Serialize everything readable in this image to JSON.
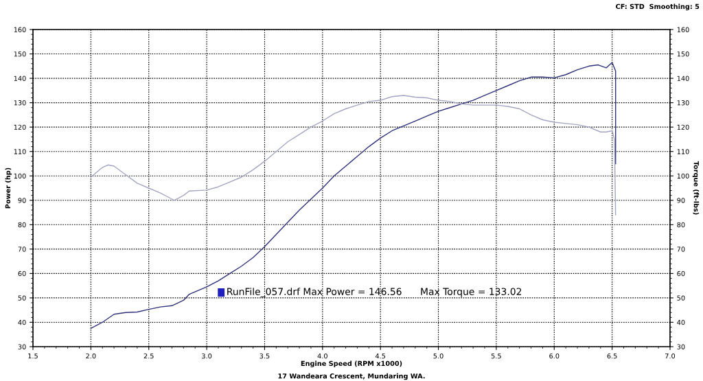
{
  "chart_data": {
    "type": "line",
    "subtitle": "CF: STD  Smoothing: 5",
    "xlabel": "Engine Speed (RPM x1000)",
    "ylabel": "Power (hp)",
    "y2label": "Torque (ft-lbs)",
    "annotations": [
      "RunFile_057.drf Max Power = 146.56      Max Torque = 133.02",
      "17 Wandeara Crescent, Mundaring WA."
    ],
    "xlim": [
      1.5,
      7.0
    ],
    "xticks": [
      {
        "value": 1.5,
        "label": "1.5"
      },
      {
        "value": 2,
        "label": "2.0"
      },
      {
        "value": 2.5,
        "label": "2.5"
      },
      {
        "value": 3,
        "label": "3.0"
      },
      {
        "value": 3.5,
        "label": "3.5"
      },
      {
        "value": 4,
        "label": "4.0"
      },
      {
        "value": 4.5,
        "label": "4.5"
      },
      {
        "value": 5,
        "label": "5.0"
      },
      {
        "value": 5.5,
        "label": "5.5"
      },
      {
        "value": 6,
        "label": "6.0"
      },
      {
        "value": 6.5,
        "label": "6.5"
      },
      {
        "value": 7,
        "label": "7.0"
      }
    ],
    "ylim": [
      30,
      160
    ],
    "yticks": [
      30,
      40,
      50,
      60,
      70,
      80,
      90,
      100,
      110,
      120,
      130,
      140,
      150,
      160
    ],
    "y2lim": [
      30,
      160
    ],
    "y2ticks": [
      30,
      40,
      50,
      60,
      70,
      80,
      90,
      100,
      110,
      120,
      130,
      140,
      150,
      160
    ],
    "grid": true,
    "marker": "none",
    "line_style": "solid",
    "series": [
      {
        "color": "#a3a6c2",
        "axis": "y2",
        "x": [
          2.0,
          2.1,
          2.15,
          2.2,
          2.3,
          2.4,
          2.5,
          2.6,
          2.7,
          2.72,
          2.8,
          2.85,
          3.0,
          3.1,
          3.2,
          3.3,
          3.4,
          3.5,
          3.6,
          3.7,
          3.8,
          3.9,
          4.0,
          4.1,
          4.2,
          4.3,
          4.4,
          4.5,
          4.6,
          4.7,
          4.8,
          4.9,
          5.0,
          5.1,
          5.2,
          5.3,
          5.5,
          5.6,
          5.7,
          5.8,
          5.9,
          6.0,
          6.1,
          6.2,
          6.3,
          6.4,
          6.45,
          6.5,
          6.52,
          6.53
        ],
        "values": [
          99.5,
          103.5,
          104.5,
          104,
          100.5,
          97,
          95,
          93,
          90.5,
          90,
          92,
          93.8,
          94.2,
          95.5,
          97.5,
          99.5,
          102.5,
          106,
          110,
          114,
          117,
          120,
          122.5,
          125.5,
          127.5,
          129,
          130.5,
          131,
          132.5,
          133,
          132.3,
          132,
          131,
          130.5,
          129.5,
          129,
          129,
          128.5,
          127.5,
          125,
          123,
          122,
          121.5,
          121,
          120,
          118,
          118,
          118.5,
          115,
          84
        ]
      },
      {
        "color": "#2e3178",
        "x": [
          2.0,
          2.1,
          2.2,
          2.3,
          2.4,
          2.5,
          2.6,
          2.7,
          2.8,
          2.85,
          3.0,
          3.1,
          3.2,
          3.3,
          3.4,
          3.5,
          3.6,
          3.7,
          3.8,
          3.9,
          4.0,
          4.1,
          4.2,
          4.3,
          4.4,
          4.5,
          4.6,
          4.7,
          4.8,
          4.9,
          5.0,
          5.1,
          5.2,
          5.3,
          5.4,
          5.5,
          5.6,
          5.7,
          5.8,
          5.9,
          6.0,
          6.1,
          6.2,
          6.3,
          6.38,
          6.45,
          6.5,
          6.53,
          6.53
        ],
        "values": [
          37.5,
          40,
          43.3,
          44,
          44.2,
          45.3,
          46.3,
          46.8,
          49,
          51.5,
          54.5,
          57,
          60,
          63,
          66.5,
          71,
          76,
          81,
          86,
          90.5,
          95,
          100,
          104,
          108,
          112,
          115.5,
          118.5,
          120.5,
          122.5,
          124.5,
          126.5,
          128,
          129.5,
          131,
          133,
          135,
          137,
          139,
          140.5,
          140.5,
          140.2,
          141.5,
          143.5,
          145,
          145.5,
          144.3,
          146.5,
          143,
          105
        ]
      }
    ]
  }
}
